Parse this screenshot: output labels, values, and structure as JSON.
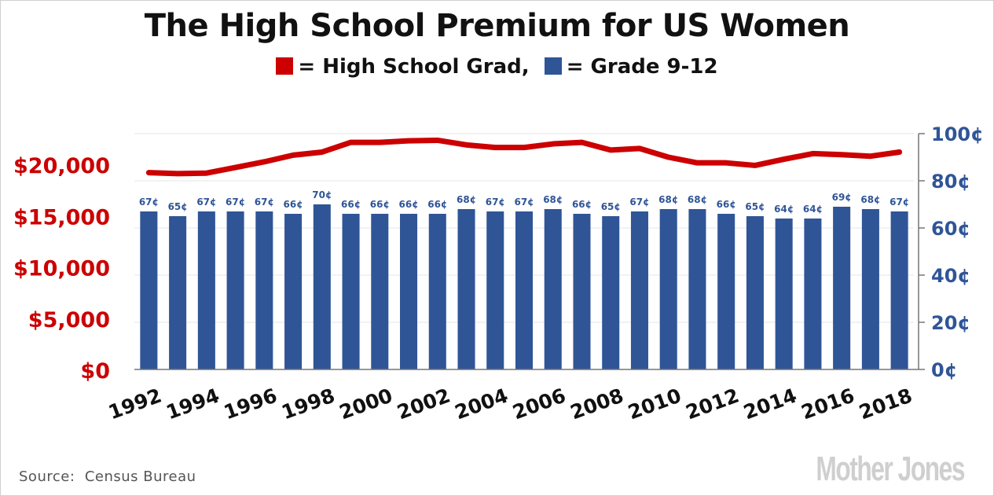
{
  "title": "The High School Premium for US Women",
  "legend": [
    {
      "label": "= High School Grad,",
      "color": "#cc0000"
    },
    {
      "label": "= Grade 9-12",
      "color": "#2f5597"
    }
  ],
  "source": "Source:  Census Bureau",
  "logo": "MotherJones",
  "colors": {
    "line": "#cc0000",
    "bars": "#2f5597",
    "left_axis": "#cc0000",
    "right_axis": "#2f5597",
    "grid": "#e6e6e6"
  },
  "chart_data": {
    "type": "bar",
    "x": [
      1992,
      1993,
      1994,
      1995,
      1996,
      1997,
      1998,
      1999,
      2000,
      2001,
      2002,
      2003,
      2004,
      2005,
      2006,
      2007,
      2008,
      2009,
      2010,
      2011,
      2012,
      2013,
      2014,
      2015,
      2016,
      2017,
      2018
    ],
    "x_tick_labels": [
      "1992",
      "1994",
      "1996",
      "1998",
      "2000",
      "2002",
      "2004",
      "2006",
      "2008",
      "2010",
      "2012",
      "2014",
      "2016",
      "2018"
    ],
    "series": [
      {
        "name": "Grade 9-12",
        "type": "bar",
        "axis": "right",
        "unit": "¢",
        "values": [
          67,
          65,
          67,
          67,
          67,
          66,
          70,
          66,
          66,
          66,
          66,
          68,
          67,
          67,
          68,
          66,
          65,
          67,
          68,
          68,
          66,
          65,
          64,
          64,
          69,
          68,
          67
        ],
        "labels": [
          "67¢",
          "65¢",
          "67¢",
          "67¢",
          "67¢",
          "66¢",
          "70¢",
          "66¢",
          "66¢",
          "66¢",
          "66¢",
          "68¢",
          "67¢",
          "67¢",
          "68¢",
          "66¢",
          "65¢",
          "67¢",
          "68¢",
          "68¢",
          "66¢",
          "65¢",
          "64¢",
          "64¢",
          "69¢",
          "68¢",
          "67¢"
        ]
      },
      {
        "name": "High School Grad",
        "type": "line",
        "axis": "left",
        "values": [
          19200,
          19100,
          19150,
          19700,
          20250,
          20900,
          21200,
          22150,
          22150,
          22300,
          22350,
          21900,
          21650,
          21650,
          22000,
          22150,
          21400,
          21550,
          20700,
          20150,
          20150,
          19900,
          20500,
          21050,
          20950,
          20800,
          21200
        ]
      }
    ],
    "y_left": {
      "ylim": [
        0,
        23000
      ],
      "ticks": [
        0,
        5000,
        10000,
        15000,
        20000
      ],
      "tick_labels": [
        "$0",
        "$5,000",
        "$10,000",
        "$15,000",
        "$20,000"
      ]
    },
    "y_right": {
      "ylim": [
        0,
        100
      ],
      "ticks": [
        0,
        20,
        40,
        60,
        80,
        100
      ],
      "tick_labels": [
        "0¢",
        "20¢",
        "40¢",
        "60¢",
        "80¢",
        "100¢"
      ]
    },
    "grid": true
  }
}
